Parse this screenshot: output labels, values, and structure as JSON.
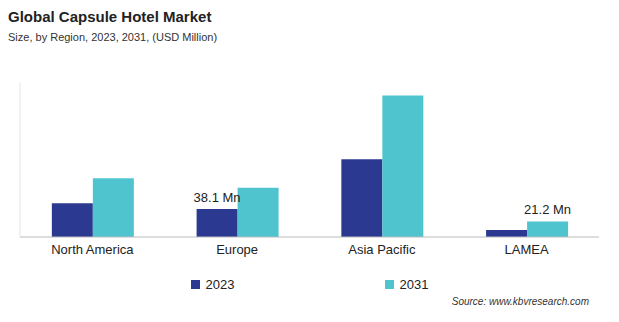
{
  "chart_data": {
    "type": "bar",
    "title": "Global Capsule Hotel Market",
    "subtitle": "Size, by Region, 2023, 2031, (USD Million)",
    "annotations": [
      "Source: www.kbvresearch.com"
    ],
    "categories": [
      "North America",
      "Europe",
      "Asia Pacific",
      "LAMEA"
    ],
    "series": [
      {
        "name": "2023",
        "color": "#2b3990",
        "values": [
          46,
          38.1,
          106,
          9.5
        ],
        "value_labels": [
          null,
          "38.1 Mn",
          null,
          null
        ]
      },
      {
        "name": "2031",
        "color": "#4fc4cf",
        "values": [
          80,
          67,
          193,
          21.2
        ],
        "value_labels": [
          null,
          null,
          null,
          "21.2 Mn"
        ]
      }
    ],
    "ylim": [
      0,
      210
    ],
    "tick_labels": "x",
    "grid": false,
    "legend": "bottom"
  }
}
